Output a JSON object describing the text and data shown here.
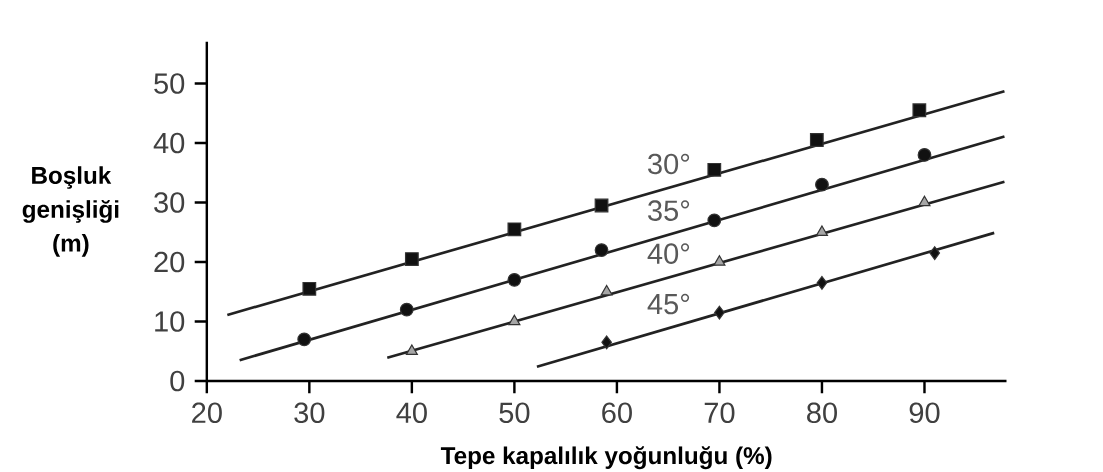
{
  "chart_data": {
    "type": "scatter",
    "xlabel": "Tepe kapalılık yoğunluğu (%)",
    "ylabel": "Boşluk genişliği (m)",
    "xlim": [
      20,
      98
    ],
    "ylim": [
      0,
      57
    ],
    "xticks": [
      20,
      30,
      40,
      50,
      60,
      70,
      80,
      90
    ],
    "yticks": [
      0,
      10,
      20,
      30,
      40,
      50
    ],
    "grid": false,
    "series": [
      {
        "marker": "square",
        "color": "#111111",
        "x": [
          30,
          40,
          50,
          58.5,
          69.5,
          79.5,
          89.5
        ],
        "values": [
          15.5,
          20.5,
          25.5,
          29.5,
          35.5,
          40.5,
          45.5
        ]
      },
      {
        "marker": "circle",
        "color": "#111111",
        "x": [
          29.5,
          39.5,
          50,
          58.5,
          69.5,
          80,
          90
        ],
        "values": [
          7,
          12,
          17,
          22,
          27,
          33,
          38
        ]
      },
      {
        "marker": "triangle",
        "color": "#a6a6a6",
        "x": [
          40,
          50,
          59,
          70,
          80,
          90
        ],
        "values": [
          5,
          10,
          15,
          20,
          25,
          30
        ]
      },
      {
        "marker": "diamond",
        "color": "#111111",
        "x": [
          59,
          70,
          80,
          91
        ],
        "values": [
          6.5,
          11.5,
          16.5,
          21.5
        ]
      },
      {
        "type": "line",
        "name": "30°",
        "marker": "none",
        "color": "#222222",
        "x": [
          22,
          97.8
        ],
        "values": [
          11.1,
          48.7
        ]
      },
      {
        "type": "line",
        "name": "35°",
        "marker": "none",
        "color": "#222222",
        "x": [
          23.2,
          97.8
        ],
        "values": [
          3.5,
          41.1
        ]
      },
      {
        "type": "line",
        "name": "40°",
        "marker": "none",
        "color": "#222222",
        "x": [
          37.6,
          97.8
        ],
        "values": [
          3.9,
          33.5
        ]
      },
      {
        "type": "line",
        "name": "45°",
        "marker": "none",
        "color": "#222222",
        "x": [
          52.2,
          96.8
        ],
        "values": [
          2.4,
          24.9
        ]
      }
    ]
  }
}
